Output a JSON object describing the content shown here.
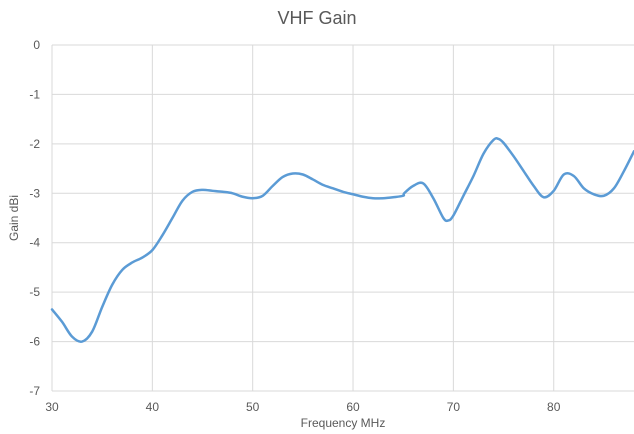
{
  "chart_data": {
    "type": "line",
    "title": "VHF Gain",
    "xlabel": "Frequency MHz",
    "ylabel": "Gain dBi",
    "xlim": [
      30,
      88
    ],
    "ylim": [
      -7,
      0
    ],
    "x_ticks": [
      30,
      40,
      50,
      60,
      70,
      80
    ],
    "y_ticks": [
      0,
      -1,
      -2,
      -3,
      -4,
      -5,
      -6,
      -7
    ],
    "grid": true,
    "legend": "none",
    "series": [
      {
        "color": "#5B9BD5",
        "x": [
          30,
          31,
          32,
          33,
          34,
          35,
          36,
          37,
          38,
          39,
          40,
          41,
          42,
          43,
          44,
          45,
          46,
          47,
          48,
          49,
          50,
          51,
          52,
          53,
          54,
          55,
          56,
          57,
          58,
          59,
          60,
          61,
          62,
          63,
          64,
          65,
          65.1,
          66,
          67,
          68,
          69,
          69.5,
          70,
          71,
          72,
          73,
          74,
          74.5,
          75,
          76,
          77,
          78,
          79,
          80,
          81,
          82,
          83,
          84,
          85,
          86,
          87,
          88
        ],
        "y": [
          -5.35,
          -5.6,
          -5.9,
          -6.0,
          -5.8,
          -5.3,
          -4.85,
          -4.55,
          -4.4,
          -4.3,
          -4.15,
          -3.85,
          -3.5,
          -3.15,
          -2.97,
          -2.93,
          -2.95,
          -2.97,
          -3.0,
          -3.07,
          -3.1,
          -3.05,
          -2.85,
          -2.67,
          -2.6,
          -2.62,
          -2.72,
          -2.83,
          -2.9,
          -2.97,
          -3.02,
          -3.07,
          -3.1,
          -3.1,
          -3.08,
          -3.05,
          -3.0,
          -2.85,
          -2.8,
          -3.1,
          -3.5,
          -3.55,
          -3.45,
          -3.05,
          -2.65,
          -2.2,
          -1.92,
          -1.9,
          -1.98,
          -2.25,
          -2.55,
          -2.85,
          -3.08,
          -2.95,
          -2.62,
          -2.65,
          -2.9,
          -3.02,
          -3.05,
          -2.9,
          -2.55,
          -2.15
        ]
      }
    ]
  }
}
